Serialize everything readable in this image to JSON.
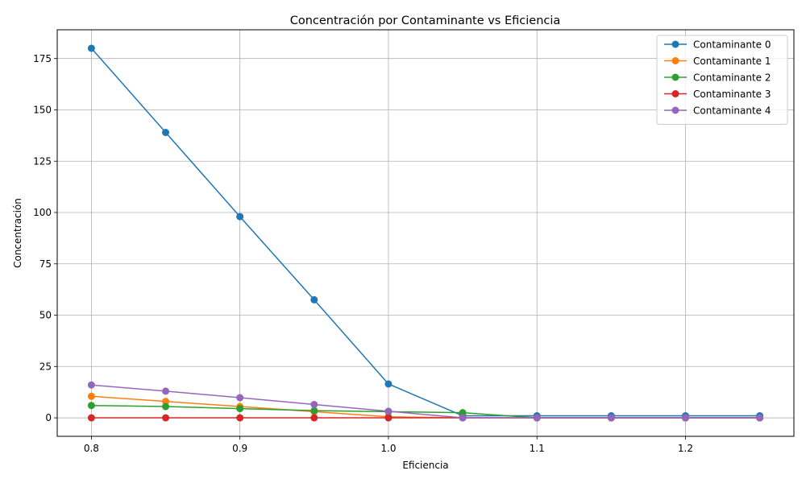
{
  "chart_data": {
    "type": "line",
    "title": "Concentración por Contaminante vs Eficiencia",
    "xlabel": "Eficiencia",
    "ylabel": "Concentración",
    "xlim": [
      0.777,
      1.273
    ],
    "ylim": [
      -9,
      189
    ],
    "xticks": [
      0.8,
      0.9,
      1.0,
      1.1,
      1.2
    ],
    "xtick_labels": [
      "0.8",
      "0.9",
      "1.0",
      "1.1",
      "1.2"
    ],
    "yticks": [
      0,
      25,
      50,
      75,
      100,
      125,
      150,
      175
    ],
    "ytick_labels": [
      "0",
      "25",
      "50",
      "75",
      "100",
      "125",
      "150",
      "175"
    ],
    "grid": true,
    "legend_position": "top-right",
    "markers": true,
    "x": [
      0.8,
      0.85,
      0.9,
      0.95,
      1.0,
      1.05,
      1.1,
      1.15,
      1.2,
      1.25
    ],
    "series": [
      {
        "name": "Contaminante 0",
        "color": "#1f77b4",
        "values": [
          180,
          139,
          98,
          57.5,
          16.5,
          1,
          1,
          1,
          1,
          1
        ]
      },
      {
        "name": "Contaminante 1",
        "color": "#ff7f0e",
        "values": [
          10.5,
          8,
          5.5,
          3,
          0.5,
          0,
          0,
          0,
          0,
          0
        ]
      },
      {
        "name": "Contaminante 2",
        "color": "#2ca02c",
        "values": [
          6,
          5.5,
          4.5,
          3.5,
          3,
          2.5,
          0,
          0,
          0,
          0
        ]
      },
      {
        "name": "Contaminante 3",
        "color": "#d62728",
        "values": [
          0,
          0,
          0,
          0,
          0,
          0,
          0,
          0,
          0,
          0
        ]
      },
      {
        "name": "Contaminante 4",
        "color": "#9467bd",
        "values": [
          16,
          13,
          9.8,
          6.5,
          3.2,
          0,
          0,
          0,
          0,
          0
        ]
      }
    ]
  }
}
